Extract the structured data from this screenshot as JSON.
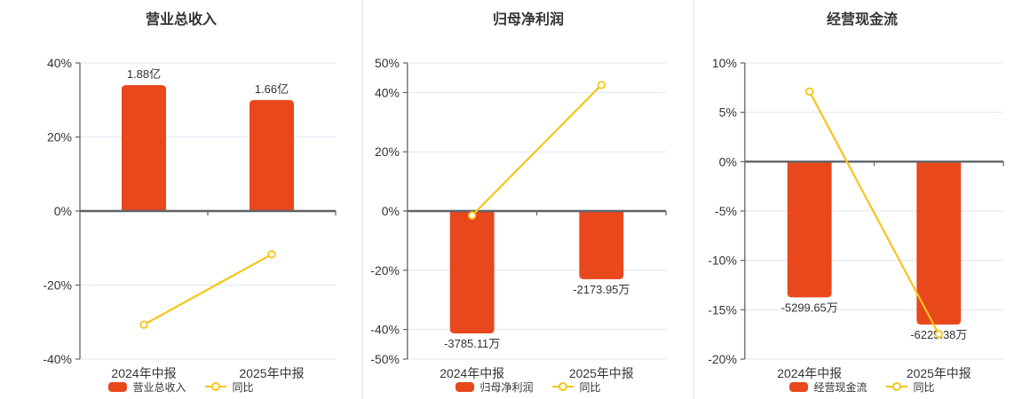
{
  "style": {
    "bar_color": "#e8481c",
    "line_color": "#f5c518",
    "axis_color": "#5f6368",
    "grid_color": "#e0e6f1",
    "text_color": "#333333",
    "separator_color": "#e4e4e4",
    "background": "#ffffff"
  },
  "chart_data": [
    {
      "type": "bar+line",
      "title": "营业总收入",
      "categories": [
        "2024年中报",
        "2025年中报"
      ],
      "bar_series": {
        "name": "营业总收入",
        "value_labels": [
          "1.88亿",
          "1.66亿"
        ],
        "plot_pct": [
          34,
          30
        ]
      },
      "line_series": {
        "name": "同比",
        "values_pct": [
          -30.7,
          -11.7
        ]
      },
      "ylim": [
        -40,
        40
      ],
      "yticks": [
        40,
        20,
        0,
        -20,
        -40
      ],
      "ytick_suffix": "%",
      "grid": true,
      "legend_position": "bottom"
    },
    {
      "type": "bar+line",
      "title": "归母净利润",
      "categories": [
        "2024年中报",
        "2025年中报"
      ],
      "bar_series": {
        "name": "归母净利润",
        "value_labels": [
          "-3785.11万",
          "-2173.95万"
        ],
        "plot_pct": [
          -41.3,
          -23
        ]
      },
      "line_series": {
        "name": "同比",
        "values_pct": [
          -1.5,
          42.57
        ]
      },
      "ylim": [
        -50,
        50
      ],
      "yticks": [
        50,
        40,
        20,
        0,
        -20,
        -40,
        -50
      ],
      "ytick_suffix": "%",
      "grid": true,
      "legend_position": "bottom"
    },
    {
      "type": "bar+line",
      "title": "经营现金流",
      "categories": [
        "2024年中报",
        "2025年中报"
      ],
      "bar_series": {
        "name": "经营现金流",
        "value_labels": [
          "-5299.65万",
          "-6225.38万"
        ],
        "plot_pct": [
          -13.75,
          -16.5
        ]
      },
      "line_series": {
        "name": "同比",
        "values_pct": [
          7.1,
          -17.47
        ]
      },
      "ylim": [
        -20,
        10
      ],
      "yticks": [
        10,
        5,
        0,
        -5,
        -10,
        -15,
        -20
      ],
      "ytick_suffix": "%",
      "grid": true,
      "legend_position": "bottom"
    }
  ]
}
